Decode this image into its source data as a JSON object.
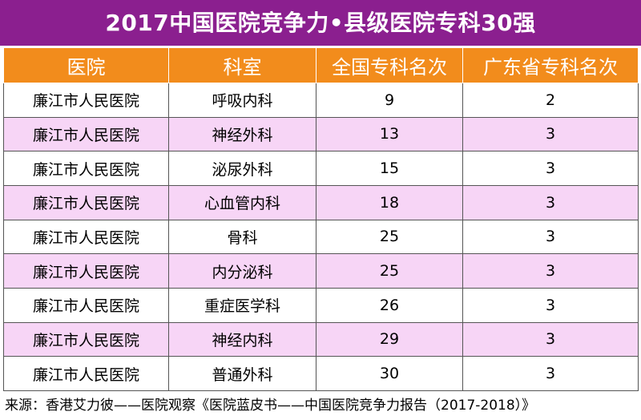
{
  "title": "2017中国医院竞争力•县级医院专科30强",
  "columns": [
    "医院",
    "科室",
    "全国专科名次",
    "广东省专科名次"
  ],
  "rows": [
    [
      "廉江市人民医院",
      "呼吸内科",
      "9",
      "2"
    ],
    [
      "廉江市人民医院",
      "神经外科",
      "13",
      "3"
    ],
    [
      "廉江市人民医院",
      "泌尿外科",
      "15",
      "3"
    ],
    [
      "廉江市人民医院",
      "心血管内科",
      "18",
      "3"
    ],
    [
      "廉江市人民医院",
      "骨科",
      "25",
      "3"
    ],
    [
      "廉江市人民医院",
      "内分泌科",
      "25",
      "3"
    ],
    [
      "廉江市人民医院",
      "重症医学科",
      "26",
      "3"
    ],
    [
      "廉江市人民医院",
      "神经内科",
      "29",
      "3"
    ],
    [
      "廉江市人民医院",
      "普通外科",
      "30",
      "3"
    ]
  ],
  "source": "来源：香港艾力彼——医院观察《医院蓝皮书——中国医院竞争力报告（2017-2018）》",
  "colors": {
    "title_bg": "#8b1f8f",
    "header_bg": "#f28c1c",
    "alt_row_bg": "#f7d5f6"
  }
}
